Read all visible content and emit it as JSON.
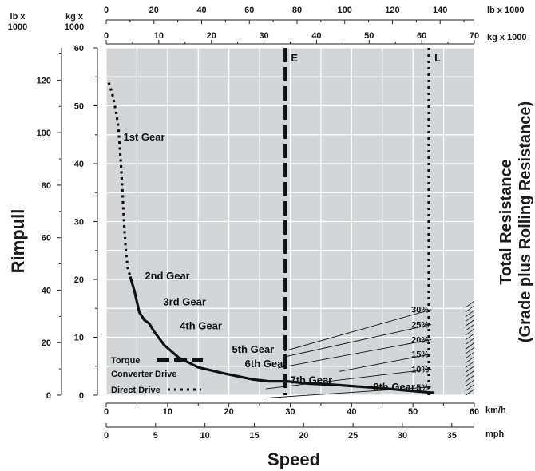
{
  "chart_data": {
    "type": "line",
    "title": "",
    "units": {
      "top_lb": "lb x 1000",
      "top_kg": "kg x 1000",
      "left_lb": "lb x\n1000",
      "left_kg": "kg x\n1000",
      "kmh": "km/h",
      "mph": "mph"
    },
    "xlabel": "Speed",
    "ylabel": "Rimpull",
    "y2label": [
      "Total Resistance",
      "(Grade plus Rolling Resistance)"
    ],
    "xlim": [
      0,
      60
    ],
    "ylim": [
      0,
      60
    ],
    "x_kmh_ticks": [
      "0",
      "10",
      "20",
      "30",
      "40",
      "50",
      "60"
    ],
    "x_mph_ticks": [
      "0",
      "5",
      "10",
      "15",
      "20",
      "25",
      "30",
      "35"
    ],
    "y_kg_ticks": [
      "0",
      "10",
      "20",
      "30",
      "40",
      "50",
      "60"
    ],
    "y_lb_ticks": [
      "0",
      "20",
      "40",
      "60",
      "80",
      "100",
      "120"
    ],
    "top_lb_ticks": [
      "0",
      "20",
      "40",
      "60",
      "80",
      "100",
      "120",
      "140"
    ],
    "top_kg_ticks": [
      "0",
      "10",
      "20",
      "30",
      "40",
      "50",
      "60",
      "70"
    ],
    "direct_drive_segments": [
      [
        [
          0.4,
          54.0
        ],
        [
          1.0,
          52.0
        ],
        [
          1.6,
          49.0
        ],
        [
          2.0,
          46.0
        ],
        [
          2.2,
          43.0
        ],
        [
          2.4,
          40.0
        ],
        [
          2.6,
          36.0
        ],
        [
          2.8,
          32.0
        ],
        [
          3.0,
          28.0
        ],
        [
          3.2,
          25.0
        ],
        [
          3.5,
          22.0
        ],
        [
          3.9,
          20.5
        ]
      ]
    ],
    "torque_converter_segments": [
      [
        [
          3.9,
          20.5
        ],
        [
          4.6,
          18.0
        ],
        [
          5.4,
          14.3
        ],
        [
          6.2,
          13.0
        ],
        [
          7.0,
          12.4
        ],
        [
          7.8,
          11.0
        ],
        [
          9.5,
          8.6
        ],
        [
          11.8,
          6.5
        ],
        [
          15.0,
          4.8
        ],
        [
          19.0,
          3.8
        ],
        [
          24.0,
          2.7
        ],
        [
          26.5,
          2.4
        ],
        [
          29.5,
          2.4
        ],
        [
          33.0,
          2.0
        ],
        [
          37.0,
          1.8
        ],
        [
          41.0,
          1.5
        ],
        [
          45.0,
          1.2
        ],
        [
          49.0,
          0.8
        ],
        [
          53.5,
          0.4
        ]
      ]
    ],
    "gear_labels": [
      {
        "text": "1st Gear",
        "x": 2.8,
        "y": 44.0
      },
      {
        "text": "2nd Gear",
        "x": 6.3,
        "y": 20.0
      },
      {
        "text": "3rd Gear",
        "x": 9.3,
        "y": 15.5
      },
      {
        "text": "4th Gear",
        "x": 12.0,
        "y": 11.4
      },
      {
        "text": "5th Gear",
        "x": 20.5,
        "y": 7.3
      },
      {
        "text": "6th Gear",
        "x": 22.6,
        "y": 4.8
      },
      {
        "text": "7th Gear",
        "x": 30.0,
        "y": 2.0
      },
      {
        "text": "8th Gear",
        "x": 43.5,
        "y": 0.8
      }
    ],
    "total_resistance_lines": [
      {
        "label": "30%",
        "from": [
          29.0,
          7.6
        ],
        "to": [
          53.0,
          14.8
        ]
      },
      {
        "label": "25%",
        "from": [
          29.0,
          6.6
        ],
        "to": [
          53.0,
          12.2
        ]
      },
      {
        "label": "20%",
        "from": [
          28.0,
          4.7
        ],
        "to": [
          53.0,
          9.6
        ]
      },
      {
        "label": "15%",
        "from": [
          38.0,
          4.1
        ],
        "to": [
          53.0,
          7.1
        ]
      },
      {
        "label": "10%",
        "from": [
          26.0,
          1.1
        ],
        "to": [
          53.0,
          4.5
        ]
      },
      {
        "label": "5%",
        "from": [
          26.0,
          -0.5
        ],
        "to": [
          53.0,
          1.4
        ]
      }
    ],
    "markers": [
      {
        "label": "E",
        "x": 29.2,
        "style": "dashed"
      },
      {
        "label": "L",
        "x": 52.6,
        "style": "dotted"
      }
    ],
    "legend": {
      "placement": "bottom-left",
      "torque_lines": [
        "Torque",
        "Converter Drive"
      ],
      "direct": "Direct Drive"
    },
    "grid": true
  }
}
